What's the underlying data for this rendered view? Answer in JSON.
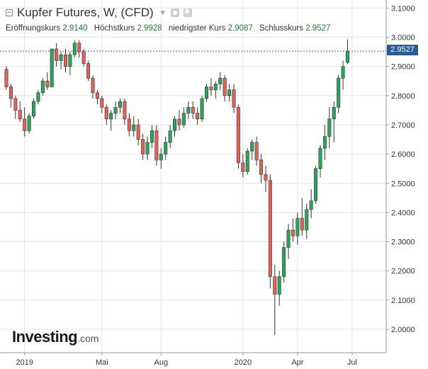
{
  "header": {
    "title": "Kupfer Futures, W, (CFD)",
    "open_label": "Eröffnungskurs",
    "open_value": "2.9140",
    "high_label": "Höchstkurs",
    "high_value": "2.9928",
    "low_label": "niedrigster Kurs",
    "low_value": "2.9087",
    "close_label": "Schlusskurs",
    "close_value": "2.9527",
    "price_tag": "2.9527"
  },
  "logo": {
    "brand": "Investing",
    "suffix": ".com"
  },
  "colors": {
    "up": "#2aa55a",
    "down": "#e0635a",
    "wick": "#333333",
    "grid": "#e6e6e6",
    "priceline": "#2a5a9a"
  },
  "chart_data": {
    "type": "candlestick",
    "ylim": [
      1.95,
      3.12
    ],
    "y_ticks": [
      "2.0000",
      "2.1000",
      "2.2000",
      "2.3000",
      "2.4000",
      "2.5000",
      "2.6000",
      "2.7000",
      "2.8000",
      "2.9000",
      "3.0000",
      "3.1000"
    ],
    "x_ticks": [
      {
        "label": "2019",
        "i": 4
      },
      {
        "label": "Mai",
        "i": 21
      },
      {
        "label": "Aug",
        "i": 34
      },
      {
        "label": "2020",
        "i": 52
      },
      {
        "label": "Apr",
        "i": 64
      },
      {
        "label": "Jul",
        "i": 76
      }
    ],
    "last_close": 2.9527,
    "candles": [
      [
        2.89,
        2.9,
        2.82,
        2.83
      ],
      [
        2.83,
        2.84,
        2.76,
        2.79
      ],
      [
        2.79,
        2.8,
        2.72,
        2.75
      ],
      [
        2.75,
        2.78,
        2.71,
        2.72
      ],
      [
        2.72,
        2.76,
        2.66,
        2.68
      ],
      [
        2.68,
        2.74,
        2.67,
        2.73
      ],
      [
        2.73,
        2.79,
        2.72,
        2.78
      ],
      [
        2.78,
        2.82,
        2.77,
        2.81
      ],
      [
        2.81,
        2.86,
        2.8,
        2.85
      ],
      [
        2.85,
        2.88,
        2.82,
        2.83
      ],
      [
        2.83,
        2.96,
        2.83,
        2.96
      ],
      [
        2.96,
        2.98,
        2.9,
        2.92
      ],
      [
        2.92,
        2.95,
        2.89,
        2.94
      ],
      [
        2.94,
        2.96,
        2.88,
        2.9
      ],
      [
        2.9,
        2.95,
        2.87,
        2.94
      ],
      [
        2.94,
        2.99,
        2.93,
        2.98
      ],
      [
        2.98,
        2.99,
        2.93,
        2.95
      ],
      [
        2.95,
        2.96,
        2.9,
        2.91
      ],
      [
        2.91,
        2.92,
        2.85,
        2.86
      ],
      [
        2.86,
        2.87,
        2.79,
        2.81
      ],
      [
        2.81,
        2.82,
        2.77,
        2.79
      ],
      [
        2.79,
        2.8,
        2.74,
        2.76
      ],
      [
        2.76,
        2.77,
        2.7,
        2.72
      ],
      [
        2.72,
        2.75,
        2.68,
        2.74
      ],
      [
        2.74,
        2.78,
        2.72,
        2.76
      ],
      [
        2.76,
        2.79,
        2.74,
        2.78
      ],
      [
        2.78,
        2.79,
        2.7,
        2.72
      ],
      [
        2.72,
        2.74,
        2.66,
        2.68
      ],
      [
        2.68,
        2.73,
        2.66,
        2.7
      ],
      [
        2.7,
        2.72,
        2.63,
        2.65
      ],
      [
        2.65,
        2.67,
        2.58,
        2.6
      ],
      [
        2.6,
        2.66,
        2.58,
        2.64
      ],
      [
        2.64,
        2.7,
        2.62,
        2.68
      ],
      [
        2.68,
        2.7,
        2.56,
        2.58
      ],
      [
        2.58,
        2.62,
        2.55,
        2.6
      ],
      [
        2.6,
        2.66,
        2.58,
        2.64
      ],
      [
        2.64,
        2.7,
        2.62,
        2.68
      ],
      [
        2.68,
        2.73,
        2.66,
        2.72
      ],
      [
        2.72,
        2.75,
        2.68,
        2.7
      ],
      [
        2.7,
        2.76,
        2.69,
        2.74
      ],
      [
        2.74,
        2.78,
        2.72,
        2.76
      ],
      [
        2.76,
        2.78,
        2.72,
        2.74
      ],
      [
        2.74,
        2.76,
        2.7,
        2.72
      ],
      [
        2.72,
        2.8,
        2.71,
        2.79
      ],
      [
        2.79,
        2.84,
        2.78,
        2.83
      ],
      [
        2.83,
        2.86,
        2.8,
        2.82
      ],
      [
        2.82,
        2.85,
        2.79,
        2.84
      ],
      [
        2.84,
        2.88,
        2.82,
        2.86
      ],
      [
        2.86,
        2.87,
        2.78,
        2.8
      ],
      [
        2.8,
        2.84,
        2.78,
        2.82
      ],
      [
        2.82,
        2.84,
        2.74,
        2.76
      ],
      [
        2.76,
        2.77,
        2.55,
        2.57
      ],
      [
        2.57,
        2.6,
        2.52,
        2.54
      ],
      [
        2.54,
        2.62,
        2.53,
        2.61
      ],
      [
        2.61,
        2.65,
        2.58,
        2.64
      ],
      [
        2.64,
        2.66,
        2.56,
        2.58
      ],
      [
        2.58,
        2.6,
        2.5,
        2.53
      ],
      [
        2.53,
        2.56,
        2.47,
        2.51
      ],
      [
        2.51,
        2.53,
        2.14,
        2.18
      ],
      [
        2.18,
        2.22,
        1.98,
        2.12
      ],
      [
        2.12,
        2.2,
        2.08,
        2.18
      ],
      [
        2.18,
        2.3,
        2.16,
        2.28
      ],
      [
        2.28,
        2.36,
        2.24,
        2.34
      ],
      [
        2.34,
        2.38,
        2.3,
        2.32
      ],
      [
        2.32,
        2.4,
        2.29,
        2.38
      ],
      [
        2.38,
        2.45,
        2.32,
        2.34
      ],
      [
        2.34,
        2.43,
        2.31,
        2.41
      ],
      [
        2.41,
        2.48,
        2.38,
        2.44
      ],
      [
        2.44,
        2.56,
        2.43,
        2.55
      ],
      [
        2.55,
        2.63,
        2.52,
        2.62
      ],
      [
        2.62,
        2.7,
        2.58,
        2.66
      ],
      [
        2.66,
        2.76,
        2.62,
        2.72
      ],
      [
        2.72,
        2.78,
        2.64,
        2.76
      ],
      [
        2.76,
        2.87,
        2.74,
        2.86
      ],
      [
        2.86,
        2.92,
        2.82,
        2.9
      ],
      [
        2.914,
        2.9928,
        2.9087,
        2.9527
      ]
    ]
  }
}
